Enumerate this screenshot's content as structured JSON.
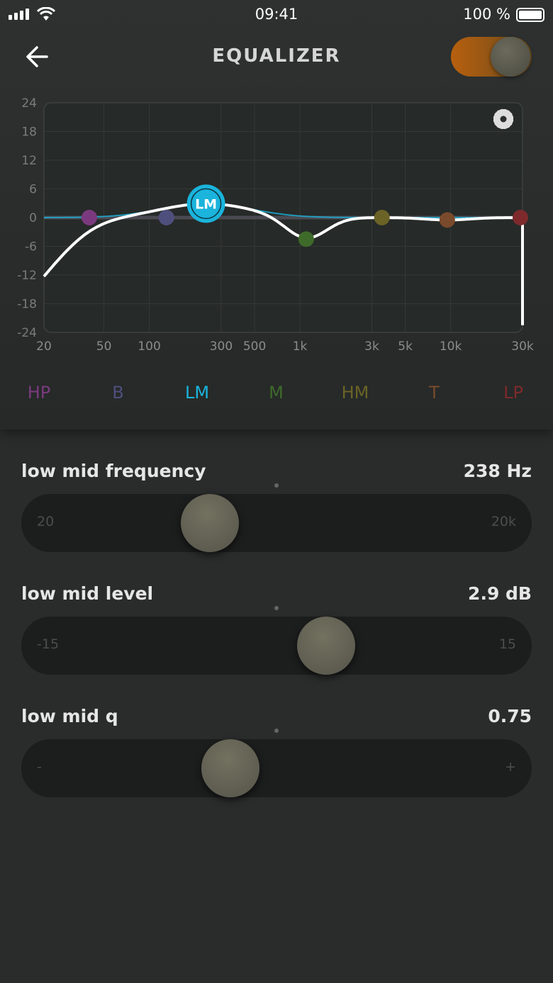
{
  "status": {
    "time": "09:41",
    "battery": "100 %"
  },
  "header": {
    "title": "EQUALIZER",
    "power_on": true
  },
  "chart_data": {
    "type": "line",
    "x_scale": "log",
    "xlim": [
      20,
      30000
    ],
    "ylim": [
      -24,
      24
    ],
    "x_ticks": [
      "20",
      "50",
      "100",
      "300",
      "500",
      "1k",
      "3k",
      "5k",
      "10k",
      "30k"
    ],
    "x_tick_values": [
      20,
      50,
      100,
      300,
      500,
      1000,
      3000,
      5000,
      10000,
      30000
    ],
    "y_ticks": [
      "24",
      "18",
      "12",
      "6",
      "0",
      "-6",
      "-12",
      "-18",
      "-24"
    ],
    "grid": true,
    "bands": [
      {
        "name": "HP",
        "freq": 40,
        "gain": 0,
        "color": "#7b3a7e"
      },
      {
        "name": "B",
        "freq": 130,
        "gain": 0,
        "color": "#4f4f7e"
      },
      {
        "name": "LM",
        "freq": 238,
        "gain": 2.9,
        "color": "#1ab4dc",
        "selected": true
      },
      {
        "name": "M",
        "freq": 1100,
        "gain": -4.5,
        "color": "#3f6b2a"
      },
      {
        "name": "HM",
        "freq": 3500,
        "gain": 0,
        "color": "#6b6326"
      },
      {
        "name": "T",
        "freq": 9500,
        "gain": -0.5,
        "color": "#7a4a2c"
      },
      {
        "name": "LP",
        "freq": 30000,
        "gain": 0,
        "color": "#7e2a2c"
      }
    ]
  },
  "sliders": [
    {
      "label": "low mid frequency",
      "value": "238 Hz",
      "min": "20",
      "max": "20k",
      "position": 0.37
    },
    {
      "label": "low mid level",
      "value": "2.9 dB",
      "min": "-15",
      "max": "15",
      "position": 0.597
    },
    {
      "label": "low mid q",
      "value": "0.75",
      "min": "-",
      "max": "+",
      "position": 0.41
    }
  ]
}
